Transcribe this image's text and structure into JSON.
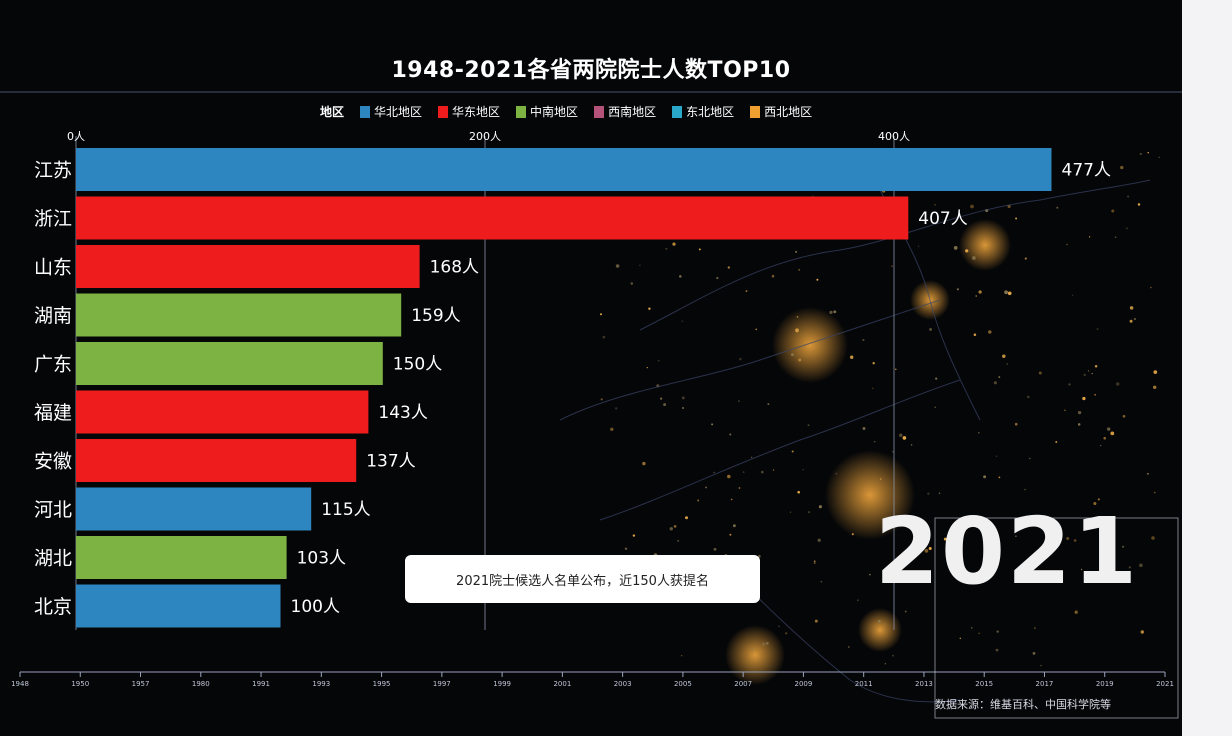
{
  "title": "1948-2021各省两院院士人数TOP10",
  "legend": {
    "title": "地区",
    "items": [
      {
        "label": "华北地区",
        "color": "#2e86c1"
      },
      {
        "label": "华东地区",
        "color": "#ee1c1c"
      },
      {
        "label": "中南地区",
        "color": "#7cb342"
      },
      {
        "label": "西南地区",
        "color": "#b5527a"
      },
      {
        "label": "东北地区",
        "color": "#2aa8c9"
      },
      {
        "label": "西北地区",
        "color": "#f0a030"
      }
    ]
  },
  "annotation": "2021院士候选人名单公布，近150人获提名",
  "year": "2021",
  "source": "数据来源：维基百科、中国科学院等",
  "chart_data": {
    "type": "bar",
    "orientation": "horizontal",
    "title": "1948-2021各省两院院士人数TOP10",
    "xlim": [
      0,
      500
    ],
    "x_ticks": [
      {
        "value": 0,
        "label": "0人"
      },
      {
        "value": 200,
        "label": "200人"
      },
      {
        "value": 400,
        "label": "400人"
      }
    ],
    "categories": [
      "江苏",
      "浙江",
      "山东",
      "湖南",
      "广东",
      "福建",
      "安徽",
      "河北",
      "湖北",
      "北京"
    ],
    "values": [
      477,
      407,
      168,
      159,
      150,
      143,
      137,
      115,
      103,
      100
    ],
    "value_labels": [
      "477人",
      "407人",
      "168人",
      "159人",
      "150人",
      "143人",
      "137人",
      "115人",
      "103人",
      "100人"
    ],
    "regions": [
      "华北地区",
      "华东地区",
      "华东地区",
      "中南地区",
      "中南地区",
      "华东地区",
      "华东地区",
      "华北地区",
      "中南地区",
      "华北地区"
    ],
    "timeline": [
      "1948",
      "1950",
      "1957",
      "1980",
      "1991",
      "1993",
      "1995",
      "1997",
      "1999",
      "2001",
      "2003",
      "2005",
      "2007",
      "2009",
      "2011",
      "2013",
      "2015",
      "2017",
      "2019",
      "2021"
    ]
  }
}
